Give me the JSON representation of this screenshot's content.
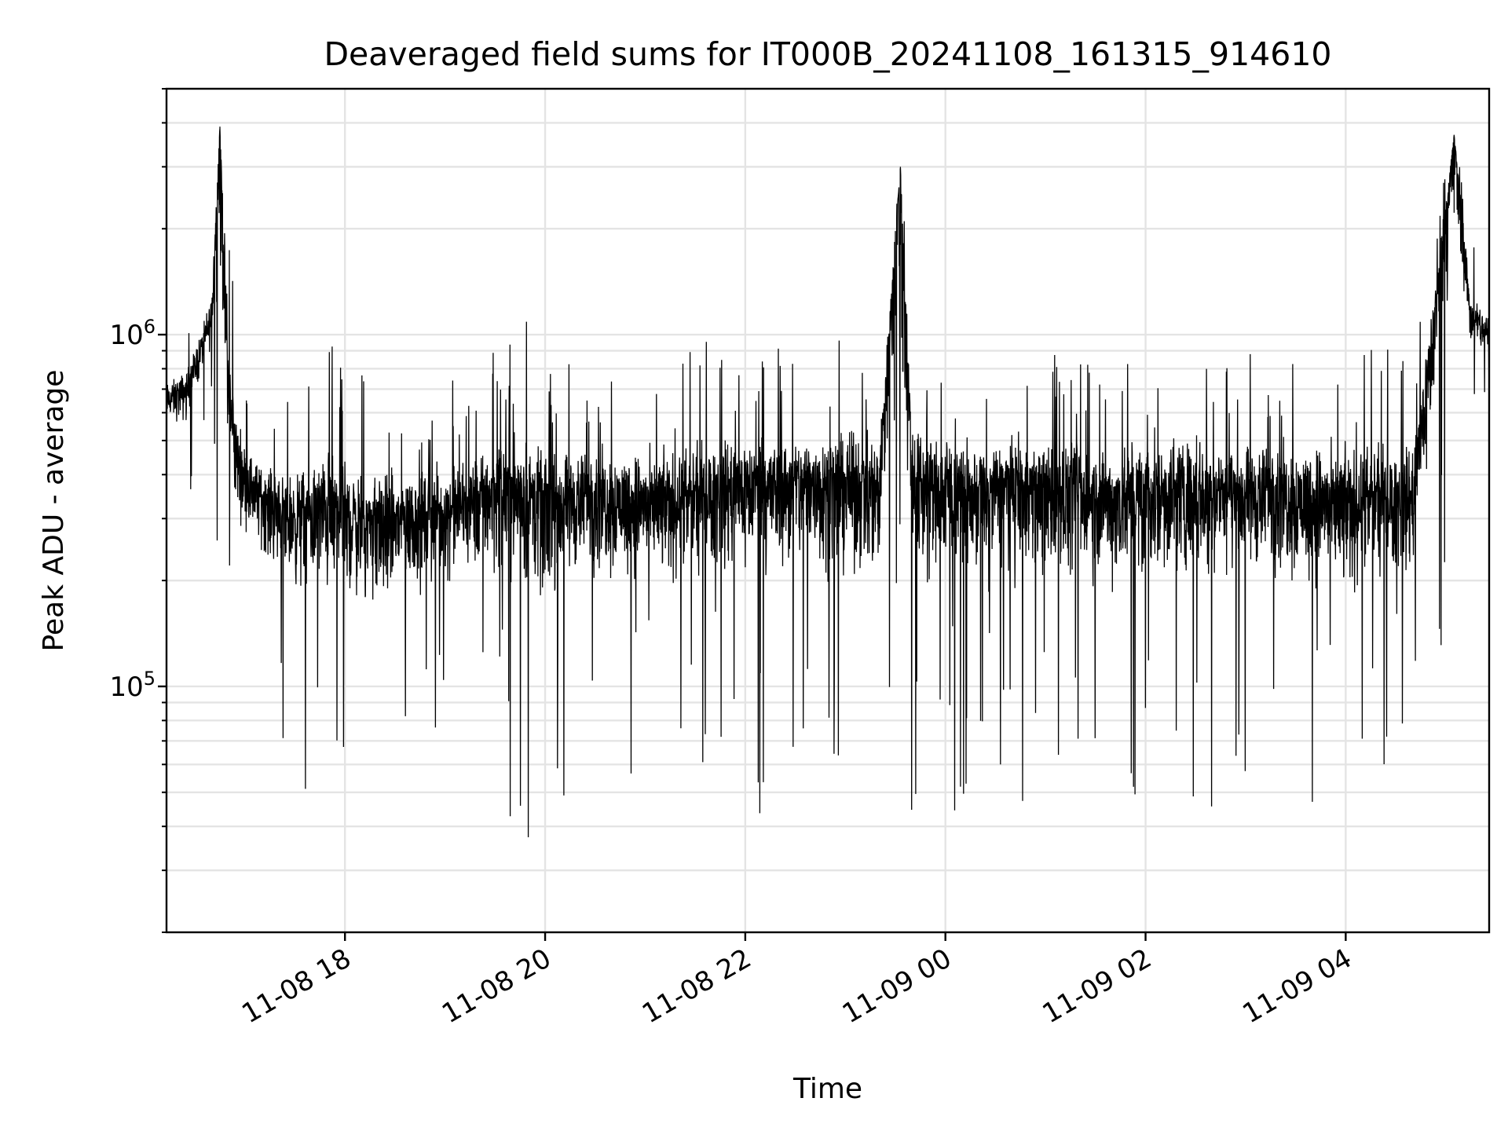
{
  "chart_data": {
    "type": "line",
    "title": "Deaveraged field sums for IT000B_20241108_161315_914610",
    "xlabel": "Time",
    "ylabel": "Peak ADU - average",
    "yscale": "log",
    "xlim": [
      "2024-11-08 16:13",
      "2024-11-09 05:26"
    ],
    "ylim": [
      20000,
      5000000
    ],
    "grid": true,
    "line_color": "#000000",
    "x_ticks": [
      {
        "value": "2024-11-08 18:00",
        "label": "11-08 18"
      },
      {
        "value": "2024-11-08 20:00",
        "label": "11-08 20"
      },
      {
        "value": "2024-11-08 22:00",
        "label": "11-08 22"
      },
      {
        "value": "2024-11-09 00:00",
        "label": "11-09 00"
      },
      {
        "value": "2024-11-09 02:00",
        "label": "11-09 02"
      },
      {
        "value": "2024-11-09 04:00",
        "label": "11-09 04"
      }
    ],
    "y_ticks": [
      {
        "value": 100000,
        "label": "10",
        "exp": "5"
      },
      {
        "value": 1000000,
        "label": "10",
        "exp": "6"
      }
    ],
    "series": [
      {
        "x": [
          "2024-11-08 16:13",
          "2024-11-08 16:25",
          "2024-11-08 16:35",
          "2024-11-08 16:40",
          "2024-11-08 16:45",
          "2024-11-08 16:50",
          "2024-11-08 16:55",
          "2024-11-08 17:00",
          "2024-11-08 17:10",
          "2024-11-08 17:30",
          "2024-11-08 17:50",
          "2024-11-08 18:10",
          "2024-11-08 18:30",
          "2024-11-08 18:50",
          "2024-11-08 19:10",
          "2024-11-08 19:30",
          "2024-11-08 19:45",
          "2024-11-08 20:00",
          "2024-11-08 20:20",
          "2024-11-08 20:40",
          "2024-11-08 21:00",
          "2024-11-08 21:20",
          "2024-11-08 21:40",
          "2024-11-08 22:00",
          "2024-11-08 22:20",
          "2024-11-08 22:40",
          "2024-11-08 23:00",
          "2024-11-08 23:20",
          "2024-11-08 23:33",
          "2024-11-08 23:40",
          "2024-11-09 00:00",
          "2024-11-09 00:20",
          "2024-11-09 00:40",
          "2024-11-09 01:00",
          "2024-11-09 01:20",
          "2024-11-09 01:40",
          "2024-11-09 02:00",
          "2024-11-09 02:20",
          "2024-11-09 02:40",
          "2024-11-09 03:00",
          "2024-11-09 03:20",
          "2024-11-09 03:40",
          "2024-11-09 04:00",
          "2024-11-09 04:20",
          "2024-11-09 04:40",
          "2024-11-09 04:55",
          "2024-11-09 05:05",
          "2024-11-09 05:15",
          "2024-11-09 05:26"
        ],
        "y": [
          650000,
          700000,
          950000,
          1100000,
          3900000,
          700000,
          450000,
          400000,
          350000,
          300000,
          320000,
          290000,
          300000,
          310000,
          320000,
          360000,
          350000,
          330000,
          340000,
          350000,
          330000,
          340000,
          360000,
          380000,
          370000,
          390000,
          380000,
          370000,
          3000000,
          380000,
          370000,
          350000,
          380000,
          360000,
          350000,
          340000,
          360000,
          370000,
          360000,
          350000,
          360000,
          340000,
          330000,
          350000,
          340000,
          1300000,
          3700000,
          1100000,
          1000000
        ],
        "envelope_high": [
          900000,
          1000000,
          1300000,
          2000000,
          3900000,
          2500000,
          1000000,
          700000,
          600000,
          700000,
          1000000,
          800000,
          700000,
          700000,
          800000,
          900000,
          1250000,
          800000,
          850000,
          800000,
          900000,
          850000,
          1000000,
          900000,
          950000,
          900000,
          1000000,
          900000,
          3000000,
          1200000,
          900000,
          850000,
          900000,
          880000,
          900000,
          850000,
          900000,
          1000000,
          950000,
          900000,
          850000,
          1000000,
          950000,
          900000,
          1000000,
          2400000,
          3700000,
          2000000,
          1500000
        ],
        "envelope_low": [
          400000,
          300000,
          500000,
          600000,
          150000,
          130000,
          120000,
          110000,
          90000,
          55000,
          35000,
          45000,
          35000,
          60000,
          70000,
          50000,
          33000,
          30000,
          55000,
          50000,
          60000,
          45000,
          55000,
          40000,
          45000,
          38000,
          40000,
          45000,
          48000,
          40000,
          37000,
          50000,
          45000,
          48000,
          46000,
          42000,
          40000,
          42000,
          45000,
          50000,
          47000,
          46000,
          35000,
          50000,
          60000,
          90000,
          420000,
          600000,
          580000
        ]
      }
    ]
  }
}
